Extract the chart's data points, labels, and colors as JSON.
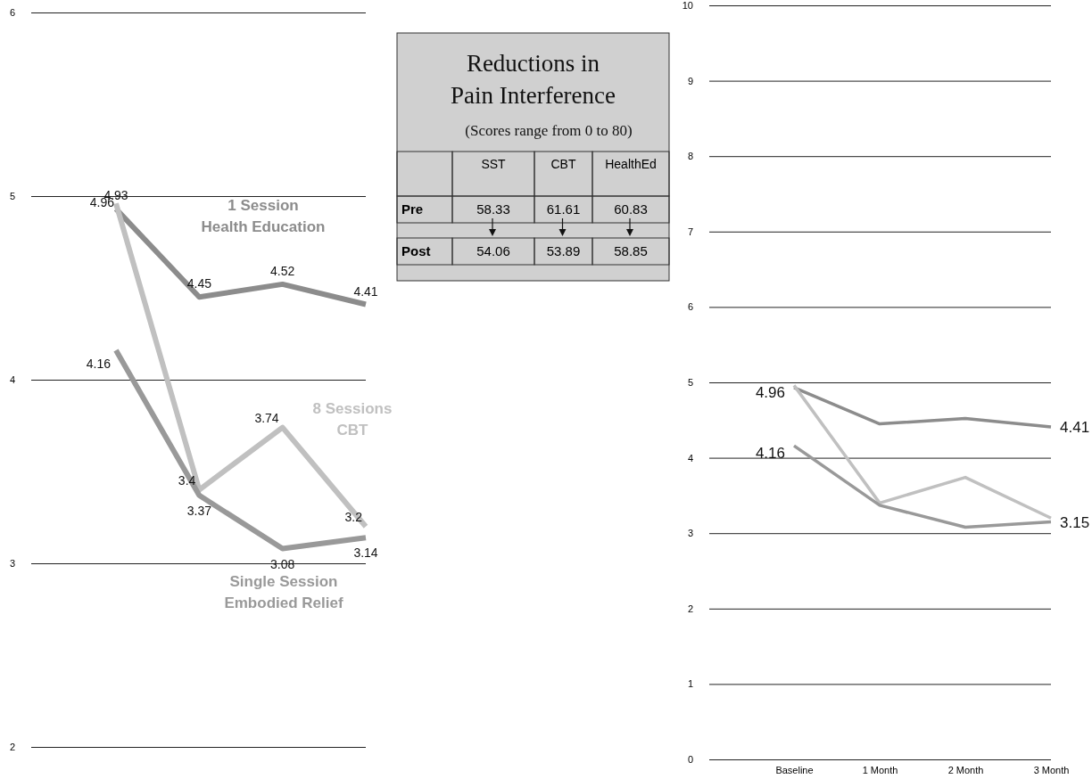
{
  "chart_data": [
    {
      "type": "line",
      "categories": [
        null,
        null,
        null,
        null
      ],
      "ylim": [
        2,
        6
      ],
      "yticks": [
        2,
        3,
        4,
        5,
        6
      ],
      "grid": "y",
      "tick_labels": "y",
      "legend": false,
      "data_labels": true,
      "series": [
        {
          "name": "1 Session Health Education",
          "color": "#8c8c8c",
          "values": [
            4.93,
            4.45,
            4.52,
            4.41
          ]
        },
        {
          "name": "8 Sessions CBT",
          "color": "#c0c0c0",
          "values": [
            4.96,
            3.4,
            3.74,
            3.2
          ]
        },
        {
          "name": "Single Session Embodied Relief",
          "color": "#999999",
          "values": [
            4.16,
            3.37,
            3.08,
            3.14
          ]
        }
      ]
    },
    {
      "type": "other",
      "title": "Reductions in Pain Interference",
      "subtitle": "(Scores range from 0 to 80)",
      "categories": [
        "SST",
        "CBT",
        "HealthEd"
      ],
      "data_labels": true,
      "series": [
        {
          "name": "Pre",
          "values": [
            58.33,
            61.61,
            60.83
          ]
        },
        {
          "name": "Post",
          "values": [
            54.06,
            53.89,
            58.85
          ]
        }
      ]
    },
    {
      "type": "line",
      "categories": [
        "Baseline",
        "1 Month",
        "2 Month",
        "3 Month"
      ],
      "ylim": [
        0,
        10
      ],
      "yticks": [
        0,
        1,
        2,
        3,
        4,
        5,
        6,
        7,
        8,
        9,
        10
      ],
      "grid": "y",
      "legend": false,
      "series": [
        {
          "color": "#8c8c8c",
          "values": [
            4.93,
            4.45,
            4.52,
            4.41
          ],
          "value_labels": [
            null,
            null,
            null,
            "4.41"
          ]
        },
        {
          "color": "#c0c0c0",
          "values": [
            4.96,
            3.4,
            3.74,
            3.2
          ],
          "value_labels": [
            "4.96",
            null,
            null,
            null
          ]
        },
        {
          "color": "#999999",
          "values": [
            4.16,
            3.37,
            3.08,
            3.15
          ],
          "value_labels": [
            "4.16",
            null,
            null,
            "3.15"
          ]
        }
      ]
    }
  ]
}
